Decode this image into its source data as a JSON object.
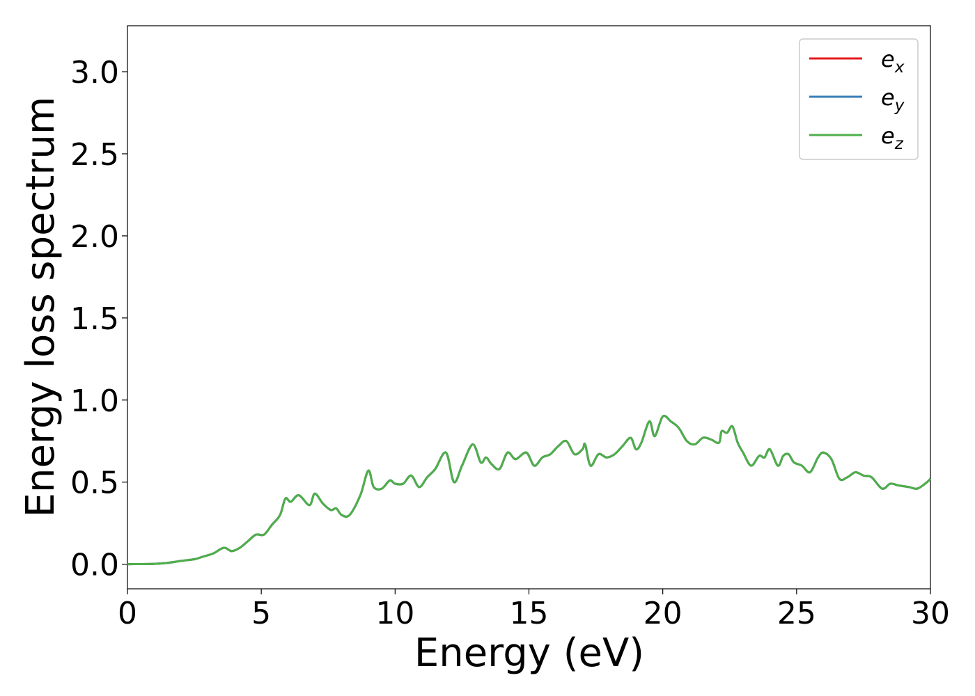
{
  "chart_data": {
    "type": "line",
    "xlabel": "Energy (eV)",
    "ylabel": "Energy loss spectrum",
    "xlim": [
      0,
      30
    ],
    "ylim": [
      -0.15,
      3.28
    ],
    "xticks": [
      "0",
      "5",
      "10",
      "15",
      "20",
      "25",
      "30"
    ],
    "yticks": [
      "0.0",
      "0.5",
      "1.0",
      "1.5",
      "2.0",
      "2.5",
      "3.0"
    ],
    "grid": false,
    "legend_position": "top-right",
    "series": [
      {
        "name": "e",
        "sub": "x",
        "color": "#e41a1c"
      },
      {
        "name": "e",
        "sub": "y",
        "color": "#377eb8"
      },
      {
        "name": "e",
        "sub": "z",
        "color": "#4daf4a"
      }
    ],
    "x": [
      0,
      1.0,
      1.5,
      2.0,
      2.5,
      2.8,
      3.2,
      3.6,
      3.9,
      4.2,
      4.5,
      4.8,
      5.1,
      5.4,
      5.7,
      5.9,
      6.1,
      6.4,
      6.8,
      7.0,
      7.3,
      7.6,
      7.8,
      8.0,
      8.3,
      8.7,
      9.0,
      9.2,
      9.5,
      9.8,
      10.0,
      10.3,
      10.6,
      10.9,
      11.2,
      11.5,
      11.9,
      12.2,
      12.5,
      12.9,
      13.2,
      13.4,
      13.6,
      13.9,
      14.2,
      14.5,
      14.9,
      15.2,
      15.5,
      15.8,
      16.1,
      16.4,
      16.7,
      17.0,
      17.1,
      17.3,
      17.6,
      17.9,
      18.2,
      18.5,
      18.8,
      19.0,
      19.2,
      19.5,
      19.7,
      20.0,
      20.3,
      20.6,
      20.9,
      21.2,
      21.5,
      21.8,
      22.1,
      22.2,
      22.4,
      22.6,
      22.8,
      23.0,
      23.3,
      23.6,
      23.8,
      24.0,
      24.3,
      24.5,
      24.7,
      24.9,
      25.2,
      25.5,
      25.8,
      26.0,
      26.3,
      26.6,
      26.9,
      27.2,
      27.5,
      27.8,
      28.2,
      28.5,
      28.8,
      29.2,
      29.5,
      29.8,
      30.0
    ],
    "y": [
      0.0,
      0.002,
      0.008,
      0.02,
      0.03,
      0.045,
      0.065,
      0.1,
      0.08,
      0.1,
      0.14,
      0.18,
      0.18,
      0.24,
      0.3,
      0.4,
      0.38,
      0.42,
      0.36,
      0.43,
      0.37,
      0.33,
      0.34,
      0.3,
      0.3,
      0.42,
      0.57,
      0.47,
      0.46,
      0.51,
      0.49,
      0.49,
      0.54,
      0.47,
      0.53,
      0.58,
      0.68,
      0.5,
      0.6,
      0.73,
      0.62,
      0.65,
      0.61,
      0.58,
      0.68,
      0.64,
      0.68,
      0.6,
      0.65,
      0.67,
      0.72,
      0.75,
      0.67,
      0.7,
      0.73,
      0.6,
      0.67,
      0.65,
      0.67,
      0.72,
      0.77,
      0.7,
      0.74,
      0.87,
      0.78,
      0.9,
      0.87,
      0.83,
      0.75,
      0.73,
      0.77,
      0.76,
      0.74,
      0.81,
      0.8,
      0.84,
      0.74,
      0.68,
      0.6,
      0.66,
      0.65,
      0.7,
      0.6,
      0.66,
      0.67,
      0.62,
      0.6,
      0.56,
      0.65,
      0.68,
      0.64,
      0.52,
      0.53,
      0.56,
      0.54,
      0.53,
      0.46,
      0.49,
      0.48,
      0.47,
      0.46,
      0.49,
      0.52
    ]
  }
}
